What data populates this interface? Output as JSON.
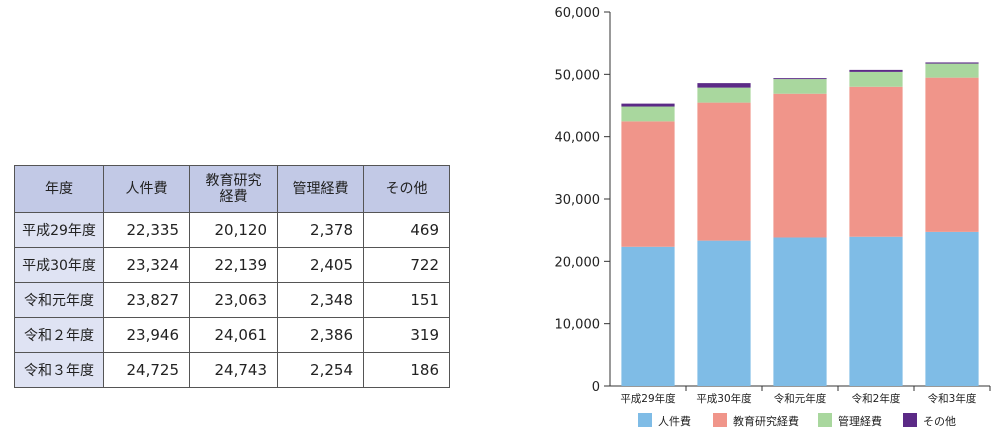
{
  "table": {
    "headers": [
      "年度",
      "人件費",
      "教育研究\n経費",
      "管理経費",
      "その他"
    ],
    "rows": [
      {
        "year": "平成29年度",
        "values": [
          "22,335",
          "20,120",
          "2,378",
          "469"
        ]
      },
      {
        "year": "平成30年度",
        "values": [
          "23,324",
          "22,139",
          "2,405",
          "722"
        ]
      },
      {
        "year": "令和元年度",
        "values": [
          "23,827",
          "23,063",
          "2,348",
          "151"
        ]
      },
      {
        "year": "令和２年度",
        "values": [
          "23,946",
          "24,061",
          "2,386",
          "319"
        ]
      },
      {
        "year": "令和３年度",
        "values": [
          "24,725",
          "24,743",
          "2,254",
          "186"
        ]
      }
    ]
  },
  "chart_data": {
    "type": "bar",
    "stacked": true,
    "categories": [
      "平成29年度",
      "平成30年度",
      "令和元年度",
      "令和2年度",
      "令和3年度"
    ],
    "series": [
      {
        "name": "人件費",
        "color": "#7fbce6",
        "values": [
          22335,
          23324,
          23827,
          23946,
          24725
        ]
      },
      {
        "name": "教育研究経費",
        "color": "#f0958a",
        "values": [
          20120,
          22139,
          23063,
          24061,
          24743
        ]
      },
      {
        "name": "管理経費",
        "color": "#a9d79e",
        "values": [
          2378,
          2405,
          2348,
          2386,
          2254
        ]
      },
      {
        "name": "その他",
        "color": "#5b2a86",
        "values": [
          469,
          722,
          151,
          319,
          186
        ]
      }
    ],
    "ylim": [
      0,
      60000
    ],
    "yticks": [
      "0",
      "10,000",
      "20,000",
      "30,000",
      "40,000",
      "50,000",
      "60,000"
    ],
    "ytick_values": [
      0,
      10000,
      20000,
      30000,
      40000,
      50000,
      60000
    ],
    "grid": false,
    "legend": "bottom"
  }
}
